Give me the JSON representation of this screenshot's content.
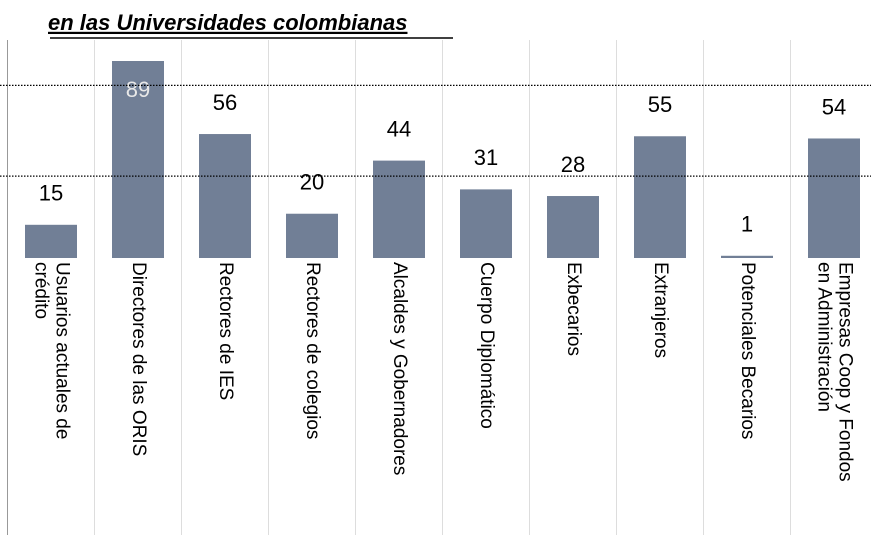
{
  "chart_data": {
    "type": "bar",
    "title": "en las Universidades colombianas",
    "categories": [
      "Usuarios actuales de\ncrédito",
      "Directores de las ORIS",
      "Rectores de IES",
      "Rectores de colegios",
      "Alcaldes y Gobernadores",
      "Cuerpo Diplomático",
      "Exbecarios",
      "Extranjeros",
      "Potenciales Becarios",
      "Empresas Coop y Fondos\nen Administración"
    ],
    "values": [
      15,
      89,
      56,
      20,
      44,
      31,
      28,
      55,
      1,
      54
    ],
    "color": "#717f96",
    "ylim": [
      0,
      89
    ],
    "yticks": [
      37,
      78
    ],
    "grid": true
  }
}
